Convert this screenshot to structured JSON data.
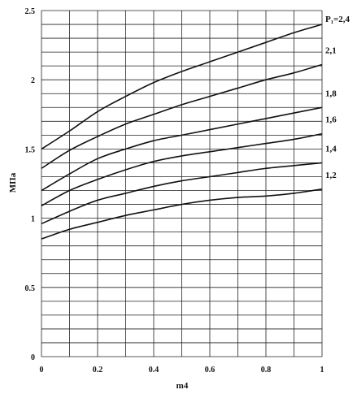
{
  "chart_data": {
    "type": "line",
    "xlabel": "m4",
    "ylabel": "МПа",
    "xlim": [
      0,
      1
    ],
    "ylim": [
      0,
      2.5
    ],
    "x_ticks": [
      "0",
      "0.2",
      "0.4",
      "0.6",
      "0.8",
      "1"
    ],
    "y_ticks": [
      "0",
      "0.5",
      "1",
      "1.5",
      "2",
      "2.5"
    ],
    "grid": true,
    "x": [
      0,
      0.1,
      0.2,
      0.3,
      0.4,
      0.5,
      0.6,
      0.7,
      0.8,
      0.9,
      1.0
    ],
    "series": [
      {
        "name": "P₁=2,4",
        "values": [
          1.5,
          1.63,
          1.77,
          1.88,
          1.98,
          2.06,
          2.13,
          2.2,
          2.27,
          2.34,
          2.4
        ]
      },
      {
        "name": "2,1",
        "values": [
          1.36,
          1.49,
          1.59,
          1.68,
          1.75,
          1.82,
          1.88,
          1.94,
          2.0,
          2.05,
          2.11
        ]
      },
      {
        "name": "1,8",
        "values": [
          1.2,
          1.32,
          1.43,
          1.5,
          1.56,
          1.6,
          1.64,
          1.68,
          1.72,
          1.76,
          1.8
        ]
      },
      {
        "name": "1,6",
        "values": [
          1.09,
          1.2,
          1.28,
          1.35,
          1.41,
          1.45,
          1.48,
          1.51,
          1.54,
          1.57,
          1.61
        ]
      },
      {
        "name": "1,4",
        "values": [
          0.96,
          1.05,
          1.13,
          1.18,
          1.23,
          1.27,
          1.3,
          1.33,
          1.36,
          1.38,
          1.4
        ]
      },
      {
        "name": "1,2",
        "values": [
          0.85,
          0.92,
          0.97,
          1.02,
          1.06,
          1.1,
          1.13,
          1.15,
          1.16,
          1.18,
          1.21
        ]
      }
    ]
  }
}
